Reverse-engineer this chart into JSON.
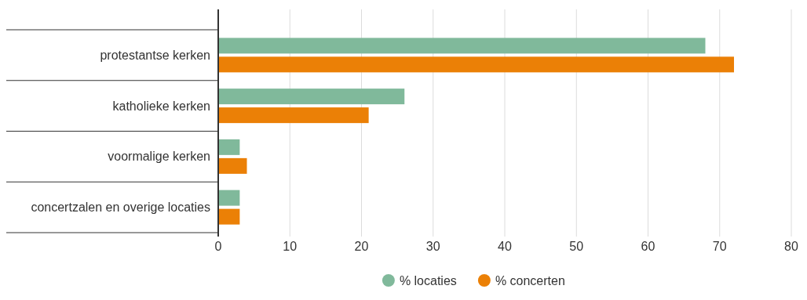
{
  "chart_data": {
    "type": "bar",
    "orientation": "horizontal",
    "categories": [
      "protestantse kerken",
      "katholieke kerken",
      "voormalige kerken",
      "concertzalen en overige locaties"
    ],
    "series": [
      {
        "name": "% locaties",
        "color": "#80b99b",
        "values": [
          68,
          26,
          3,
          3
        ]
      },
      {
        "name": "% concerten",
        "color": "#eb8006",
        "values": [
          72,
          21,
          4,
          3
        ]
      }
    ],
    "xlim": [
      0,
      80
    ],
    "xticks": [
      0,
      10,
      20,
      30,
      40,
      50,
      60,
      70,
      80
    ],
    "grid": "x",
    "legend": "bottom"
  }
}
